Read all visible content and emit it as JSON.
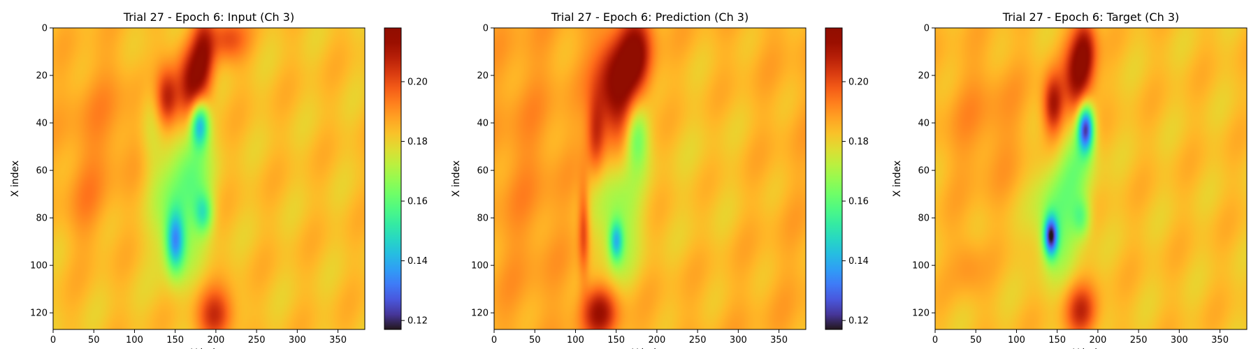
{
  "chart_data": [
    {
      "type": "heatmap",
      "title": "Trial 27 - Epoch 6: Input (Ch 3)",
      "xlabel": "Y index",
      "ylabel": "X index",
      "xlim": [
        0,
        383
      ],
      "ylim": [
        127,
        0
      ],
      "xticks": [
        0,
        50,
        100,
        150,
        200,
        250,
        300,
        350
      ],
      "yticks": [
        0,
        20,
        40,
        60,
        80,
        100,
        120
      ],
      "colorbar": {
        "colormap": "turbo",
        "range": [
          0.117,
          0.218
        ],
        "ticks": [
          0.12,
          0.14,
          0.16,
          0.18,
          0.2
        ],
        "tick_labels": [
          "0.12",
          "0.14",
          "0.16",
          "0.18",
          "0.20"
        ]
      },
      "background_value": 0.183,
      "features": [
        {
          "x": 170,
          "y": 25,
          "sx": 13,
          "sy": 12,
          "value": 0.212
        },
        {
          "x": 140,
          "y": 30,
          "sx": 10,
          "sy": 9,
          "value": 0.209
        },
        {
          "x": 185,
          "y": 10,
          "sx": 10,
          "sy": 12,
          "value": 0.205
        },
        {
          "x": 215,
          "y": 4,
          "sx": 16,
          "sy": 7,
          "value": 0.2
        },
        {
          "x": 180,
          "y": 40,
          "sx": 8,
          "sy": 7,
          "value": 0.14
        },
        {
          "x": 170,
          "y": 55,
          "sx": 16,
          "sy": 14,
          "value": 0.168
        },
        {
          "x": 150,
          "y": 90,
          "sx": 8,
          "sy": 9,
          "value": 0.145
        },
        {
          "x": 155,
          "y": 78,
          "sx": 22,
          "sy": 18,
          "value": 0.165
        },
        {
          "x": 185,
          "y": 78,
          "sx": 8,
          "sy": 6,
          "value": 0.16
        },
        {
          "x": 200,
          "y": 122,
          "sx": 16,
          "sy": 8,
          "value": 0.205
        },
        {
          "x": 60,
          "y": 40,
          "sx": 40,
          "sy": 22,
          "value": 0.19
        },
        {
          "x": 40,
          "y": 75,
          "sx": 20,
          "sy": 14,
          "value": 0.189
        },
        {
          "x": 120,
          "y": 40,
          "sx": 10,
          "sy": 16,
          "value": 0.175
        }
      ]
    },
    {
      "type": "heatmap",
      "title": "Trial 27 - Epoch 6: Prediction (Ch 3)",
      "xlabel": "Y index",
      "ylabel": "X index",
      "xlim": [
        0,
        383
      ],
      "ylim": [
        127,
        0
      ],
      "xticks": [
        0,
        50,
        100,
        150,
        200,
        250,
        300,
        350
      ],
      "yticks": [
        0,
        20,
        40,
        60,
        80,
        100,
        120
      ],
      "colorbar": {
        "colormap": "turbo",
        "range": [
          0.117,
          0.218
        ],
        "ticks": [
          0.12,
          0.14,
          0.16,
          0.18,
          0.2
        ],
        "tick_labels": [
          "0.12",
          "0.14",
          "0.16",
          "0.18",
          "0.20"
        ]
      },
      "background_value": 0.186,
      "features": [
        {
          "x": 150,
          "y": 25,
          "sx": 18,
          "sy": 16,
          "value": 0.218
        },
        {
          "x": 175,
          "y": 10,
          "sx": 14,
          "sy": 12,
          "value": 0.212
        },
        {
          "x": 125,
          "y": 45,
          "sx": 8,
          "sy": 12,
          "value": 0.205
        },
        {
          "x": 175,
          "y": 45,
          "sx": 10,
          "sy": 10,
          "value": 0.162
        },
        {
          "x": 150,
          "y": 80,
          "sx": 22,
          "sy": 20,
          "value": 0.168
        },
        {
          "x": 150,
          "y": 90,
          "sx": 6,
          "sy": 6,
          "value": 0.155
        },
        {
          "x": 130,
          "y": 120,
          "sx": 16,
          "sy": 8,
          "value": 0.212
        },
        {
          "x": 110,
          "y": 85,
          "sx": 5,
          "sy": 14,
          "value": 0.205
        },
        {
          "x": 250,
          "y": 60,
          "sx": 60,
          "sy": 40,
          "value": 0.182
        },
        {
          "x": 40,
          "y": 60,
          "sx": 30,
          "sy": 40,
          "value": 0.19
        }
      ]
    },
    {
      "type": "heatmap",
      "title": "Trial 27 - Epoch 6: Target (Ch 3)",
      "xlabel": "Y index",
      "ylabel": "X index",
      "xlim": [
        0,
        383
      ],
      "ylim": [
        127,
        0
      ],
      "xticks": [
        0,
        50,
        100,
        150,
        200,
        250,
        300,
        350
      ],
      "yticks": [
        0,
        20,
        40,
        60,
        80,
        100,
        120
      ],
      "colorbar": {
        "colormap": "turbo",
        "range": [
          0.117,
          0.218
        ],
        "ticks": [
          0.12,
          0.14,
          0.16,
          0.18,
          0.2
        ],
        "tick_labels": [
          "0.12",
          "0.14",
          "0.16",
          "0.18",
          "0.20"
        ]
      },
      "background_value": 0.183,
      "features": [
        {
          "x": 175,
          "y": 22,
          "sx": 12,
          "sy": 12,
          "value": 0.212
        },
        {
          "x": 145,
          "y": 32,
          "sx": 9,
          "sy": 9,
          "value": 0.21
        },
        {
          "x": 185,
          "y": 8,
          "sx": 10,
          "sy": 10,
          "value": 0.206
        },
        {
          "x": 185,
          "y": 42,
          "sx": 7,
          "sy": 7,
          "value": 0.125
        },
        {
          "x": 175,
          "y": 55,
          "sx": 16,
          "sy": 12,
          "value": 0.168
        },
        {
          "x": 142,
          "y": 88,
          "sx": 6,
          "sy": 6,
          "value": 0.13
        },
        {
          "x": 150,
          "y": 80,
          "sx": 20,
          "sy": 16,
          "value": 0.162
        },
        {
          "x": 180,
          "y": 80,
          "sx": 8,
          "sy": 6,
          "value": 0.165
        },
        {
          "x": 180,
          "y": 120,
          "sx": 14,
          "sy": 8,
          "value": 0.205
        },
        {
          "x": 60,
          "y": 40,
          "sx": 40,
          "sy": 22,
          "value": 0.19
        },
        {
          "x": 40,
          "y": 100,
          "sx": 14,
          "sy": 10,
          "value": 0.19
        }
      ]
    }
  ]
}
